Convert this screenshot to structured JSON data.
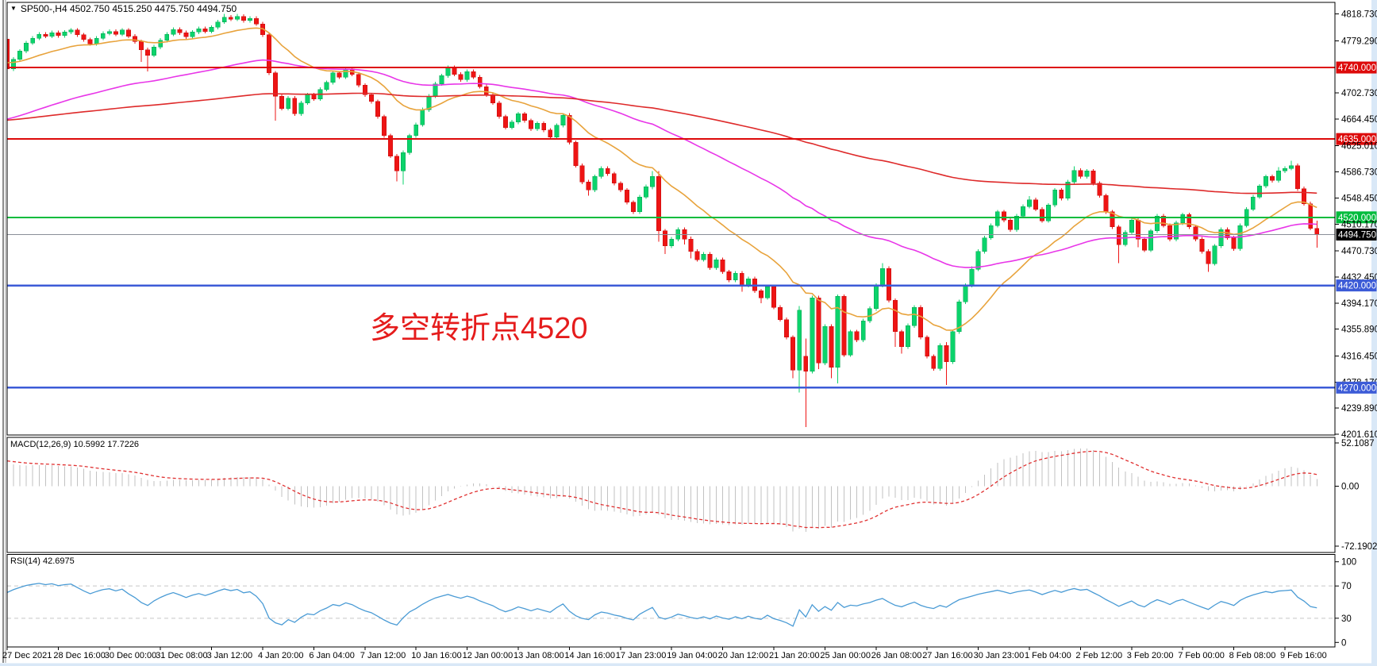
{
  "window": {
    "title_arrow": "▼",
    "title": "SP500-,H4  4502.750 4515.250 4475.750 4494.750"
  },
  "indicator_labels": {
    "macd": "MACD(12,26,9) 10.5992 17.7226",
    "rsi": "RSI(14) 42.6975"
  },
  "annotation": {
    "text": "多空转折点4520",
    "color": "#e51c1c"
  },
  "colors": {
    "up": "#0bd36b",
    "up_stroke": "#07a352",
    "down": "#ee1414",
    "down_stroke": "#c40f0f",
    "ma_fast": "#e8a33c",
    "ma_mid": "#e836e8",
    "ma_slow": "#de2a2a",
    "line_red": "#dd0a0a",
    "line_green": "#00bc3c",
    "line_blue": "#3c5bd7",
    "line_gray": "#8a8f98",
    "macd_hist": "#c2c2c2",
    "macd_signal": "#e03030",
    "rsi": "#4a9bd5",
    "level_dash": "#c8c8c8",
    "badge_text": "#ffffff",
    "black_badge": "#000000",
    "chrome": "#d9e8f7",
    "border": "#000000"
  },
  "price_axis": {
    "ticks": [
      {
        "p": 4818.73,
        "t": "4818.730",
        "k": "plain"
      },
      {
        "p": 4779.29,
        "t": "4779.290",
        "k": "plain"
      },
      {
        "p": 4740.0,
        "t": "4740.000",
        "k": "red"
      },
      {
        "p": 4702.73,
        "t": "4702.730",
        "k": "plain"
      },
      {
        "p": 4664.45,
        "t": "4664.450",
        "k": "plain"
      },
      {
        "p": 4635.0,
        "t": "4635.000",
        "k": "red"
      },
      {
        "p": 4625.01,
        "t": "4625.010",
        "k": "plain"
      },
      {
        "p": 4586.73,
        "t": "4586.730",
        "k": "plain"
      },
      {
        "p": 4548.45,
        "t": "4548.450",
        "k": "plain"
      },
      {
        "p": 4520.0,
        "t": "4520.000",
        "k": "green"
      },
      {
        "p": 4510.17,
        "t": "4510.170",
        "k": "plain"
      },
      {
        "p": 4494.75,
        "t": "4494.750",
        "k": "black"
      },
      {
        "p": 4470.73,
        "t": "4470.730",
        "k": "plain"
      },
      {
        "p": 4432.45,
        "t": "4432.450",
        "k": "plain"
      },
      {
        "p": 4420.0,
        "t": "4420.000",
        "k": "blue"
      },
      {
        "p": 4394.17,
        "t": "4394.170",
        "k": "plain"
      },
      {
        "p": 4355.89,
        "t": "4355.890",
        "k": "plain"
      },
      {
        "p": 4316.45,
        "t": "4316.450",
        "k": "plain"
      },
      {
        "p": 4278.17,
        "t": "4278.170",
        "k": "plain"
      },
      {
        "p": 4270.0,
        "t": "4270.000",
        "k": "blue"
      },
      {
        "p": 4239.89,
        "t": "4239.890",
        "k": "plain"
      },
      {
        "p": 4201.61,
        "t": "4201.610",
        "k": "plain"
      }
    ]
  },
  "macd_axis": {
    "labels": [
      {
        "v": 52.1087,
        "t": "52.1087"
      },
      {
        "v": 0,
        "t": "0.00"
      },
      {
        "v": -72.1902,
        "t": "-72.1902"
      }
    ]
  },
  "rsi_axis": {
    "labels": [
      {
        "v": 100,
        "t": "100"
      },
      {
        "v": 70,
        "t": "70"
      },
      {
        "v": 30,
        "t": "30"
      },
      {
        "v": 0,
        "t": "0"
      }
    ],
    "dashed_levels": [
      70,
      30
    ]
  },
  "hlines": [
    {
      "p": 4740.0,
      "c": "line_red",
      "w": 2
    },
    {
      "p": 4635.0,
      "c": "line_red",
      "w": 2
    },
    {
      "p": 4520.0,
      "c": "line_green",
      "w": 2
    },
    {
      "p": 4494.75,
      "c": "line_gray",
      "w": 1
    },
    {
      "p": 4420.0,
      "c": "line_blue",
      "w": 2.5
    },
    {
      "p": 4270.0,
      "c": "line_blue",
      "w": 2.5
    }
  ],
  "chart_data": {
    "type": "candlestick",
    "symbol": "SP500-",
    "timeframe": "H4",
    "title": "SP500-,H4",
    "last_bar_ohlc": {
      "open": 4502.75,
      "high": 4515.25,
      "low": 4475.75,
      "close": 4494.75
    },
    "y_axis": {
      "max": 4818.73,
      "min": 4201.61
    },
    "x_labels": [
      "27 Dec 2021",
      "28 Dec 16:00",
      "30 Dec 00:00",
      "31 Dec 08:00",
      "3 Jan 12:00",
      "4 Jan 20:00",
      "6 Jan 04:00",
      "7 Jan 12:00",
      "10 Jan 16:00",
      "12 Jan 00:00",
      "13 Jan 08:00",
      "14 Jan 16:00",
      "17 Jan 23:00",
      "19 Jan 04:00",
      "20 Jan 12:00",
      "21 Jan 20:00",
      "25 Jan 00:00",
      "26 Jan 08:00",
      "27 Jan 16:00",
      "30 Jan 23:00",
      "1 Feb 04:00",
      "2 Feb 12:00",
      "3 Feb 20:00",
      "7 Feb 00:00",
      "8 Feb 08:00",
      "9 Feb 16:00"
    ],
    "bars_per_label": 8,
    "closes": [
      4738,
      4752,
      4764,
      4776,
      4783,
      4789,
      4786,
      4791,
      4787,
      4792,
      4795,
      4788,
      4781,
      4775,
      4783,
      4790,
      4793,
      4789,
      4795,
      4786,
      4778,
      4766,
      4758,
      4770,
      4780,
      4789,
      4796,
      4791,
      4785,
      4792,
      4797,
      4793,
      4799,
      4807,
      4814,
      4811,
      4815,
      4809,
      4812,
      4804,
      4788,
      4732,
      4698,
      4680,
      4695,
      4672,
      4688,
      4700,
      4694,
      4708,
      4718,
      4732,
      4726,
      4738,
      4730,
      4714,
      4700,
      4690,
      4668,
      4640,
      4610,
      4588,
      4615,
      4640,
      4656,
      4678,
      4698,
      4716,
      4728,
      4740,
      4730,
      4722,
      4734,
      4726,
      4712,
      4700,
      4688,
      4668,
      4652,
      4660,
      4672,
      4662,
      4650,
      4658,
      4648,
      4638,
      4655,
      4670,
      4630,
      4596,
      4572,
      4560,
      4580,
      4592,
      4584,
      4570,
      4560,
      4542,
      4528,
      4550,
      4565,
      4580,
      4500,
      4478,
      4488,
      4502,
      4488,
      4470,
      4458,
      4466,
      4446,
      4458,
      4440,
      4428,
      4438,
      4420,
      4430,
      4412,
      4402,
      4418,
      4388,
      4370,
      4344,
      4296,
      4384,
      4294,
      4402,
      4306,
      4360,
      4300,
      4404,
      4318,
      4352,
      4340,
      4368,
      4386,
      4420,
      4445,
      4398,
      4352,
      4330,
      4361,
      4388,
      4344,
      4316,
      4298,
      4332,
      4308,
      4352,
      4396,
      4420,
      4444,
      4470,
      4490,
      4508,
      4528,
      4516,
      4502,
      4522,
      4536,
      4546,
      4532,
      4515,
      4538,
      4560,
      4548,
      4572,
      4589,
      4580,
      4588,
      4570,
      4552,
      4528,
      4506,
      4480,
      4498,
      4516,
      4488,
      4472,
      4500,
      4522,
      4508,
      4488,
      4512,
      4524,
      4506,
      4488,
      4470,
      4452,
      4478,
      4502,
      4490,
      4474,
      4508,
      4532,
      4550,
      4566,
      4580,
      4574,
      4588,
      4592,
      4596,
      4562,
      4540,
      4504,
      4494.75
    ],
    "opens_override": {
      "0": 4782,
      "125": 4316
    },
    "wick_default": 3,
    "wicks": {
      "21": [
        3,
        18
      ],
      "22": [
        3,
        24
      ],
      "34": [
        4.7,
        3
      ],
      "36": [
        3.7,
        3
      ],
      "42": [
        3,
        36
      ],
      "61": [
        3,
        15
      ],
      "62": [
        3,
        20
      ],
      "91": [
        3,
        8
      ],
      "101": [
        8,
        4
      ],
      "102": [
        8,
        16
      ],
      "103": [
        3,
        12
      ],
      "106": [
        3,
        8
      ],
      "107": [
        4,
        10
      ],
      "115": [
        3,
        9
      ],
      "118": [
        3,
        8
      ],
      "123": [
        3,
        12
      ],
      "124": [
        6,
        33
      ],
      "125": [
        26,
        82
      ],
      "127": [
        3,
        9
      ],
      "129": [
        3,
        16
      ],
      "130": [
        3,
        24
      ],
      "137": [
        8,
        3
      ],
      "139": [
        3,
        22
      ],
      "140": [
        3,
        10
      ],
      "147": [
        5,
        34
      ],
      "151": [
        4,
        3
      ],
      "160": [
        5,
        3
      ],
      "167": [
        6,
        3
      ],
      "174": [
        3,
        27
      ],
      "177": [
        3,
        12
      ],
      "188": [
        3,
        12
      ],
      "199": [
        6,
        3
      ],
      "201": [
        7,
        3
      ],
      "205": [
        11,
        19
      ]
    },
    "indicators": {
      "macd": {
        "fast": 12,
        "slow": 26,
        "signal": 9,
        "last_main": 10.5992,
        "last_signal": 17.7226,
        "scale_max": 52.1087,
        "scale_min": -72.1902
      },
      "rsi": {
        "period": 14,
        "last": 42.6975,
        "levels": [
          70,
          30
        ],
        "range": [
          0,
          100
        ]
      },
      "moving_averages": [
        {
          "name": "fast-ma-orange"
        },
        {
          "name": "mid-ma-magenta"
        },
        {
          "name": "slow-ma-red"
        }
      ]
    }
  }
}
